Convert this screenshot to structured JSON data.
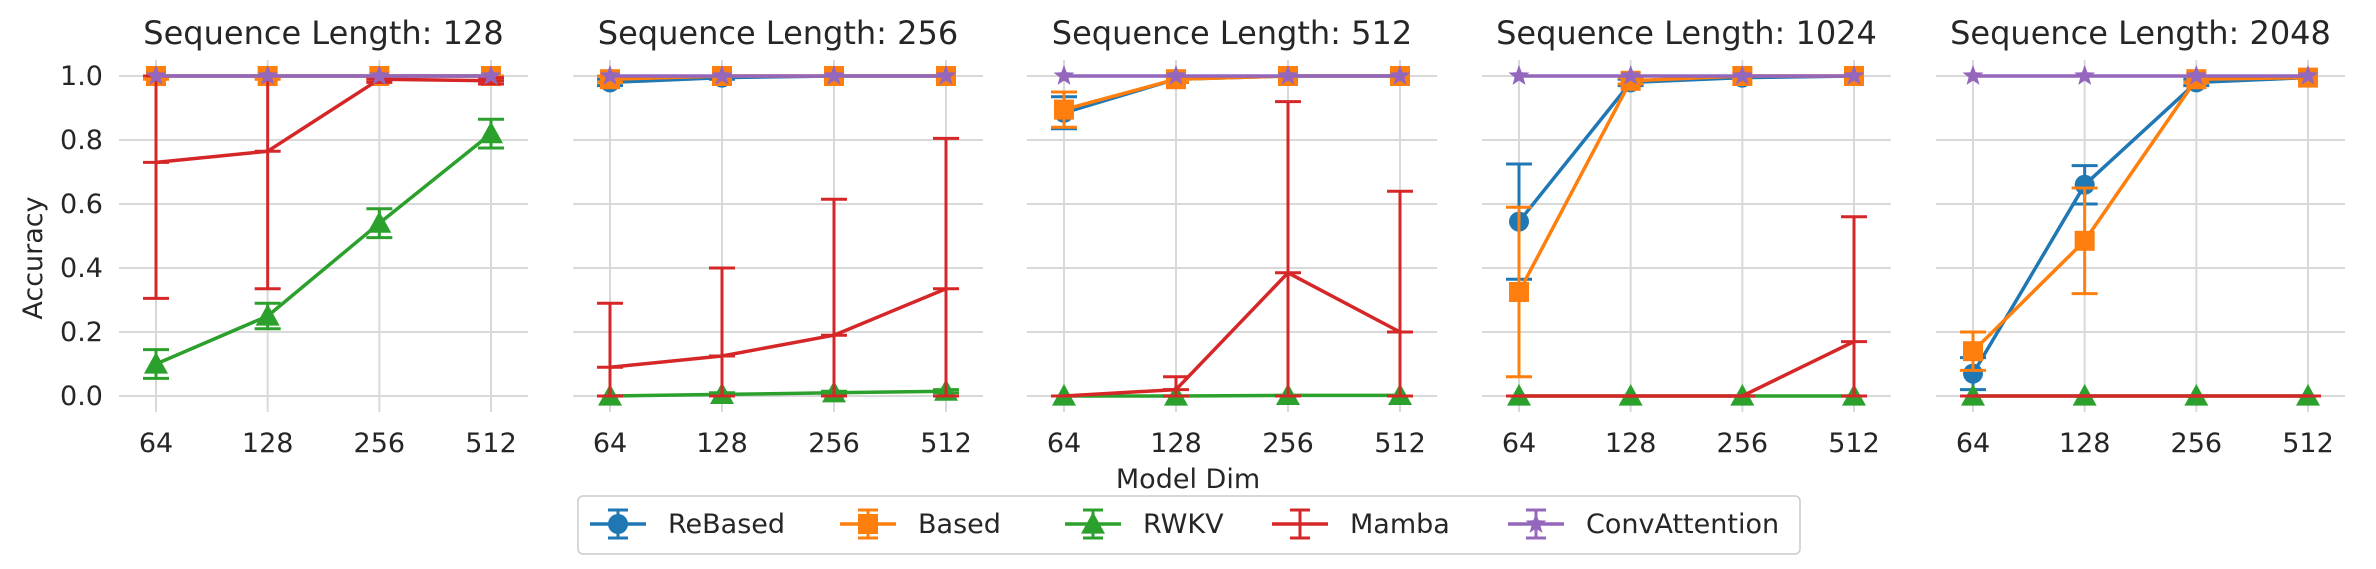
{
  "chart_data": {
    "type": "line",
    "shared_xlabel": "Model Dim",
    "shared_ylabel": "Accuracy",
    "categories": [
      "64",
      "128",
      "256",
      "512"
    ],
    "yticks": [
      "0.0",
      "0.2",
      "0.4",
      "0.6",
      "0.8",
      "1.0"
    ],
    "ylim": [
      -0.05,
      1.05
    ],
    "colors": {
      "ReBased": "#1f77b4",
      "Based": "#ff7f0e",
      "RWKV": "#2ca02c",
      "Mamba": "#d62728",
      "ConvAttention": "#9467bd"
    },
    "markers": {
      "ReBased": "circle",
      "Based": "square",
      "RWKV": "triangle",
      "Mamba": "none",
      "ConvAttention": "star"
    },
    "legend": [
      "ReBased",
      "Based",
      "RWKV",
      "Mamba",
      "ConvAttention"
    ],
    "legend_position": "bottom-center",
    "panels": [
      {
        "title": "Sequence Length: 128",
        "series": [
          {
            "name": "ReBased",
            "values": [
              1.0,
              1.0,
              1.0,
              1.0
            ],
            "err": [
              0,
              0,
              0,
              0
            ]
          },
          {
            "name": "Based",
            "values": [
              1.0,
              1.0,
              1.0,
              1.0
            ],
            "err": [
              0.01,
              0.01,
              0.01,
              0.01
            ]
          },
          {
            "name": "RWKV",
            "values": [
              0.1,
              0.25,
              0.54,
              0.82
            ],
            "err": [
              0.045,
              0.04,
              0.045,
              0.045
            ]
          },
          {
            "name": "Mamba",
            "values": [
              0.73,
              0.765,
              0.99,
              0.985
            ],
            "err": [
              0.425,
              0.43,
              0.01,
              0.01
            ]
          },
          {
            "name": "ConvAttention",
            "values": [
              1.0,
              1.0,
              1.0,
              1.0
            ],
            "err": [
              0,
              0,
              0,
              0
            ]
          }
        ]
      },
      {
        "title": "Sequence Length: 256",
        "series": [
          {
            "name": "ReBased",
            "values": [
              0.98,
              0.995,
              1.0,
              1.0
            ],
            "err": [
              0.01,
              0.005,
              0,
              0
            ]
          },
          {
            "name": "Based",
            "values": [
              0.99,
              1.0,
              1.0,
              1.0
            ],
            "err": [
              0.01,
              0,
              0,
              0
            ]
          },
          {
            "name": "RWKV",
            "values": [
              0.0,
              0.005,
              0.01,
              0.015
            ],
            "err": [
              0,
              0.005,
              0.005,
              0.005
            ]
          },
          {
            "name": "Mamba",
            "values": [
              0.09,
              0.125,
              0.19,
              0.335
            ],
            "err": [
              0.2,
              0.275,
              0.425,
              0.47
            ]
          },
          {
            "name": "ConvAttention",
            "values": [
              1.0,
              1.0,
              1.0,
              1.0
            ],
            "err": [
              0,
              0,
              0,
              0
            ]
          }
        ]
      },
      {
        "title": "Sequence Length: 512",
        "series": [
          {
            "name": "ReBased",
            "values": [
              0.885,
              0.99,
              1.0,
              1.0
            ],
            "err": [
              0.05,
              0.01,
              0,
              0
            ]
          },
          {
            "name": "Based",
            "values": [
              0.895,
              0.99,
              1.0,
              1.0
            ],
            "err": [
              0.055,
              0.01,
              0,
              0
            ]
          },
          {
            "name": "RWKV",
            "values": [
              0.0,
              0.0,
              0.002,
              0.002
            ],
            "err": [
              0,
              0,
              0,
              0
            ]
          },
          {
            "name": "Mamba",
            "values": [
              0.0,
              0.02,
              0.385,
              0.2
            ],
            "err": [
              0,
              0.04,
              0.535,
              0.44
            ]
          },
          {
            "name": "ConvAttention",
            "values": [
              1.0,
              1.0,
              1.0,
              1.0
            ],
            "err": [
              0,
              0,
              0,
              0
            ]
          }
        ]
      },
      {
        "title": "Sequence Length: 1024",
        "series": [
          {
            "name": "ReBased",
            "values": [
              0.545,
              0.98,
              0.995,
              1.0
            ],
            "err": [
              0.18,
              0.01,
              0,
              0
            ]
          },
          {
            "name": "Based",
            "values": [
              0.325,
              0.985,
              1.0,
              1.0
            ],
            "err": [
              0.265,
              0.01,
              0,
              0
            ]
          },
          {
            "name": "RWKV",
            "values": [
              0.0,
              0.0,
              0.0,
              0.0
            ],
            "err": [
              0,
              0,
              0,
              0
            ]
          },
          {
            "name": "Mamba",
            "values": [
              0.0,
              0.0,
              0.0,
              0.17
            ],
            "err": [
              0,
              0,
              0,
              0.39
            ]
          },
          {
            "name": "ConvAttention",
            "values": [
              1.0,
              1.0,
              1.0,
              1.0
            ],
            "err": [
              0,
              0,
              0,
              0
            ]
          }
        ]
      },
      {
        "title": "Sequence Length: 2048",
        "series": [
          {
            "name": "ReBased",
            "values": [
              0.07,
              0.66,
              0.98,
              0.995
            ],
            "err": [
              0.05,
              0.06,
              0.01,
              0
            ]
          },
          {
            "name": "Based",
            "values": [
              0.14,
              0.485,
              0.99,
              0.995
            ],
            "err": [
              0.06,
              0.165,
              0.01,
              0
            ]
          },
          {
            "name": "RWKV",
            "values": [
              0.0,
              0.0,
              0.0,
              0.0
            ],
            "err": [
              0,
              0,
              0,
              0
            ]
          },
          {
            "name": "Mamba",
            "values": [
              0.0,
              0.0,
              0.0,
              0.0
            ],
            "err": [
              0,
              0,
              0,
              0
            ]
          },
          {
            "name": "ConvAttention",
            "values": [
              1.0,
              1.0,
              1.0,
              1.0
            ],
            "err": [
              0,
              0,
              0,
              0
            ]
          }
        ]
      }
    ]
  }
}
